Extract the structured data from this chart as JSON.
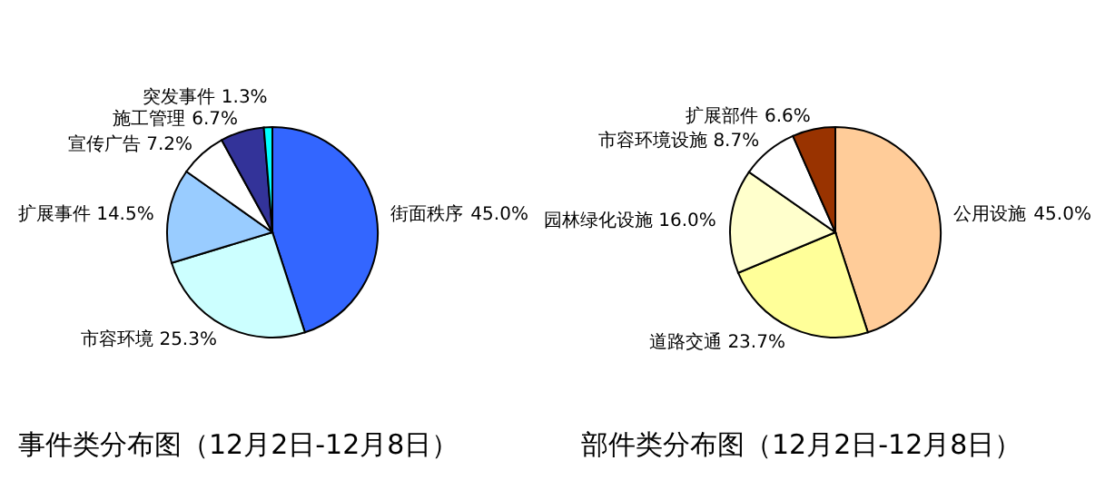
{
  "chart_data": [
    {
      "type": "pie",
      "title": "事件类分布图（12月2日-12月8日）",
      "categories": [
        "街面秩序",
        "市容环境",
        "扩展事件",
        "宣传广告",
        "施工管理",
        "突发事件"
      ],
      "values": [
        45.0,
        25.3,
        14.5,
        7.2,
        6.7,
        1.3
      ],
      "colors": [
        "#3366ff",
        "#ccffff",
        "#99ccff",
        "#ffffff",
        "#333399",
        "#00ffff"
      ],
      "value_labels": [
        "45.0%",
        "25.3%",
        "14.5%",
        "7.2%",
        "6.7%",
        "1.3%"
      ]
    },
    {
      "type": "pie",
      "title": "部件类分布图（12月2日-12月8日）",
      "categories": [
        "公用设施",
        "道路交通",
        "园林绿化设施",
        "市容环境设施",
        "扩展部件"
      ],
      "values": [
        45.0,
        23.7,
        16.0,
        8.7,
        6.6
      ],
      "colors": [
        "#ffcc99",
        "#ffff99",
        "#ffffcc",
        "#ffffff",
        "#993300"
      ],
      "value_labels": [
        "45.0%",
        "23.7%",
        "16.0%",
        "8.7%",
        "6.6%"
      ]
    }
  ]
}
